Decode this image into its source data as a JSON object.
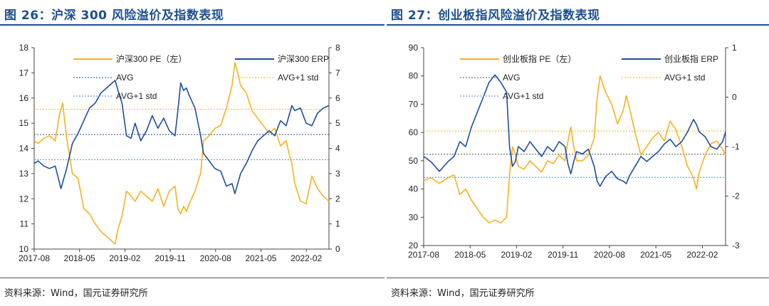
{
  "colors": {
    "pe": "#f5b21f",
    "erp": "#1f4e9c",
    "title": "#1d4f91"
  },
  "panels": {
    "left": {
      "title": "图 26：沪深 300 风险溢价及指数表现",
      "source": "资料来源：Wind，国元证券研究所"
    },
    "right": {
      "title": "图 27：创业板指风险溢价及指数表现",
      "source": "资料来源：Wind，国元证券研究所"
    }
  },
  "chart_data": [
    {
      "type": "line",
      "title": "沪深 300 风险溢价及指数表现",
      "x_ticks": [
        "2017-08",
        "2018-05",
        "2019-02",
        "2019-11",
        "2020-08",
        "2021-05",
        "2022-02"
      ],
      "x_range": [
        2017.58,
        2022.75
      ],
      "y_left": {
        "range": [
          10,
          18
        ],
        "ticks": [
          10,
          11,
          12,
          13,
          14,
          15,
          16,
          17,
          18
        ]
      },
      "y_right": {
        "range": [
          0,
          8
        ],
        "ticks": [
          0,
          1,
          2,
          3,
          4,
          5,
          6,
          7,
          8
        ]
      },
      "legend": [
        {
          "label": "沪深300 PE（左）",
          "style": "solid",
          "color": "#f5b21f"
        },
        {
          "label": "沪深300 ERP",
          "style": "solid",
          "color": "#1f4e9c"
        },
        {
          "label": "AVG",
          "style": "dotted",
          "color": "#1f4e9c"
        },
        {
          "label": "AVG+1 std",
          "style": "dotted",
          "color": "#f5b21f"
        },
        {
          "label": "AVG+1 std",
          "style": "dotted",
          "color": "#4a8fd8"
        }
      ],
      "reference_lines": [
        {
          "axis": "left",
          "value": 15.55,
          "color": "#f5b21f"
        },
        {
          "axis": "right",
          "value": 4.55,
          "color": "#1f4e9c"
        },
        {
          "axis": "right",
          "value": 3.55,
          "color": "#4a8fd8"
        }
      ],
      "series": [
        {
          "name": "沪深300 PE（左）",
          "axis": "left",
          "color": "#f5b21f",
          "x": [
            2017.58,
            2017.65,
            2017.75,
            2017.85,
            2017.95,
            2018.02,
            2018.08,
            2018.15,
            2018.25,
            2018.35,
            2018.45,
            2018.55,
            2018.65,
            2018.75,
            2018.85,
            2018.95,
            2019.0,
            2019.05,
            2019.12,
            2019.2,
            2019.28,
            2019.35,
            2019.45,
            2019.55,
            2019.65,
            2019.75,
            2019.85,
            2019.95,
            2020.05,
            2020.1,
            2020.15,
            2020.2,
            2020.25,
            2020.3,
            2020.4,
            2020.5,
            2020.55,
            2020.65,
            2020.75,
            2020.85,
            2020.95,
            2021.05,
            2021.1,
            2021.15,
            2021.2,
            2021.3,
            2021.4,
            2021.5,
            2021.6,
            2021.7,
            2021.8,
            2021.9,
            2022.0,
            2022.05,
            2022.1,
            2022.15,
            2022.25,
            2022.35,
            2022.45,
            2022.55,
            2022.65,
            2022.75
          ],
          "values": [
            14.3,
            14.2,
            14.4,
            14.5,
            14.3,
            15.3,
            15.8,
            14.4,
            13.0,
            12.8,
            11.6,
            11.4,
            11.0,
            10.7,
            10.5,
            10.3,
            10.2,
            10.8,
            11.3,
            12.3,
            12.1,
            11.9,
            12.3,
            12.1,
            11.9,
            12.4,
            11.7,
            12.3,
            12.5,
            11.6,
            11.4,
            11.7,
            11.5,
            11.8,
            12.3,
            13.0,
            14.3,
            14.5,
            14.8,
            14.9,
            15.6,
            16.5,
            17.4,
            17.0,
            16.5,
            16.2,
            15.5,
            15.2,
            14.9,
            14.6,
            14.8,
            14.1,
            14.3,
            13.8,
            13.4,
            12.6,
            11.9,
            11.8,
            12.9,
            12.4,
            12.1,
            11.9
          ]
        },
        {
          "name": "沪深300 ERP",
          "axis": "right",
          "color": "#1f4e9c",
          "x": [
            2017.58,
            2017.65,
            2017.75,
            2017.85,
            2017.95,
            2018.05,
            2018.15,
            2018.25,
            2018.35,
            2018.45,
            2018.55,
            2018.65,
            2018.75,
            2018.85,
            2018.95,
            2019.0,
            2019.05,
            2019.12,
            2019.2,
            2019.28,
            2019.35,
            2019.45,
            2019.55,
            2019.65,
            2019.75,
            2019.85,
            2019.95,
            2020.05,
            2020.1,
            2020.15,
            2020.2,
            2020.25,
            2020.3,
            2020.4,
            2020.5,
            2020.55,
            2020.65,
            2020.75,
            2020.85,
            2020.95,
            2021.05,
            2021.1,
            2021.15,
            2021.2,
            2021.3,
            2021.4,
            2021.5,
            2021.6,
            2021.7,
            2021.8,
            2021.9,
            2022.0,
            2022.05,
            2022.1,
            2022.15,
            2022.25,
            2022.35,
            2022.45,
            2022.55,
            2022.65,
            2022.75
          ],
          "values": [
            3.4,
            3.5,
            3.3,
            3.2,
            3.3,
            2.4,
            3.2,
            4.2,
            4.6,
            5.1,
            5.6,
            5.8,
            6.2,
            6.4,
            6.6,
            6.7,
            6.3,
            5.8,
            4.5,
            4.4,
            5.0,
            4.3,
            4.7,
            5.3,
            4.8,
            5.2,
            4.7,
            4.5,
            5.5,
            6.6,
            6.3,
            6.4,
            6.1,
            5.6,
            4.5,
            3.8,
            3.5,
            3.2,
            3.1,
            2.5,
            2.6,
            2.2,
            2.6,
            3.0,
            3.4,
            3.9,
            4.3,
            4.5,
            4.7,
            4.5,
            5.1,
            4.9,
            5.3,
            5.7,
            5.5,
            5.6,
            5.0,
            4.9,
            5.4,
            5.6,
            5.7
          ]
        }
      ]
    },
    {
      "type": "line",
      "title": "创业板指风险溢价及指数表现",
      "x_ticks": [
        "2017-08",
        "2018-05",
        "2019-02",
        "2019-11",
        "2020-08",
        "2021-05",
        "2022-02"
      ],
      "x_range": [
        2017.58,
        2022.75
      ],
      "y_left": {
        "range": [
          20,
          90
        ],
        "ticks": [
          20,
          30,
          40,
          50,
          60,
          70,
          80,
          90
        ]
      },
      "y_right": {
        "range": [
          -3,
          1
        ],
        "ticks": [
          -3,
          -2,
          -1,
          0,
          1
        ]
      },
      "legend": [
        {
          "label": "创业板指 PE（左）",
          "style": "solid",
          "color": "#f5b21f"
        },
        {
          "label": "创业板指 ERP",
          "style": "solid",
          "color": "#1f4e9c"
        },
        {
          "label": "AVG",
          "style": "dotted",
          "color": "#555555"
        },
        {
          "label": "AVG+1 std",
          "style": "dotted",
          "color": "#f5b21f"
        },
        {
          "label": "AVG+1 std",
          "style": "dotted",
          "color": "#4a8fd8"
        }
      ],
      "reference_lines": [
        {
          "axis": "left",
          "value": 60.5,
          "color": "#f5b21f"
        },
        {
          "axis": "left",
          "value": 52.3,
          "color": "#555555"
        },
        {
          "axis": "left",
          "value": 44.1,
          "color": "#4a8fd8"
        }
      ],
      "series": [
        {
          "name": "创业板指 PE（左）",
          "axis": "left",
          "color": "#f5b21f",
          "x": [
            2017.58,
            2017.7,
            2017.85,
            2018.0,
            2018.1,
            2018.2,
            2018.3,
            2018.4,
            2018.5,
            2018.6,
            2018.7,
            2018.8,
            2018.9,
            2019.0,
            2019.05,
            2019.1,
            2019.15,
            2019.2,
            2019.3,
            2019.4,
            2019.5,
            2019.6,
            2019.7,
            2019.8,
            2019.9,
            2020.0,
            2020.05,
            2020.1,
            2020.15,
            2020.2,
            2020.3,
            2020.4,
            2020.5,
            2020.55,
            2020.6,
            2020.7,
            2020.8,
            2020.9,
            2021.0,
            2021.05,
            2021.1,
            2021.2,
            2021.3,
            2021.4,
            2021.5,
            2021.6,
            2021.7,
            2021.8,
            2021.9,
            2022.0,
            2022.1,
            2022.2,
            2022.25,
            2022.3,
            2022.4,
            2022.5,
            2022.6,
            2022.7,
            2022.75
          ],
          "values": [
            43,
            44,
            42,
            44,
            45,
            38,
            40,
            36,
            33,
            30,
            28,
            29,
            28,
            30,
            45,
            55,
            52,
            48,
            47,
            50,
            48,
            46,
            50,
            49,
            52,
            50,
            57,
            62,
            55,
            50,
            50,
            52,
            58,
            72,
            80,
            74,
            70,
            63,
            68,
            73,
            69,
            60,
            52,
            55,
            58,
            60,
            57,
            64,
            61,
            55,
            48,
            44,
            40,
            46,
            52,
            56,
            57,
            54,
            52
          ]
        },
        {
          "name": "创业板指 ERP",
          "axis": "right",
          "color": "#1f4e9c",
          "x": [
            2017.58,
            2017.7,
            2017.85,
            2018.0,
            2018.1,
            2018.2,
            2018.3,
            2018.4,
            2018.5,
            2018.6,
            2018.7,
            2018.8,
            2018.9,
            2019.0,
            2019.05,
            2019.1,
            2019.15,
            2019.2,
            2019.3,
            2019.4,
            2019.5,
            2019.6,
            2019.7,
            2019.8,
            2019.9,
            2020.0,
            2020.05,
            2020.1,
            2020.15,
            2020.2,
            2020.3,
            2020.4,
            2020.5,
            2020.55,
            2020.6,
            2020.7,
            2020.8,
            2020.9,
            2021.0,
            2021.05,
            2021.1,
            2021.2,
            2021.3,
            2021.4,
            2021.5,
            2021.6,
            2021.7,
            2021.8,
            2021.9,
            2022.0,
            2022.1,
            2022.2,
            2022.25,
            2022.3,
            2022.4,
            2022.5,
            2022.6,
            2022.7,
            2022.75
          ],
          "values": [
            -1.2,
            -1.3,
            -1.5,
            -1.3,
            -1.2,
            -0.9,
            -1.0,
            -0.6,
            -0.3,
            0.0,
            0.3,
            0.45,
            0.3,
            0.1,
            -1.0,
            -1.4,
            -1.3,
            -1.0,
            -1.1,
            -0.9,
            -1.05,
            -1.2,
            -1.0,
            -1.1,
            -0.9,
            -1.0,
            -1.35,
            -1.55,
            -1.3,
            -1.1,
            -1.15,
            -1.05,
            -1.4,
            -1.7,
            -1.8,
            -1.6,
            -1.5,
            -1.65,
            -1.7,
            -1.75,
            -1.6,
            -1.4,
            -1.2,
            -1.3,
            -1.2,
            -1.1,
            -0.95,
            -0.85,
            -1.0,
            -0.9,
            -0.7,
            -0.45,
            -0.55,
            -0.7,
            -0.8,
            -1.0,
            -1.05,
            -0.9,
            -0.7
          ]
        }
      ]
    }
  ]
}
